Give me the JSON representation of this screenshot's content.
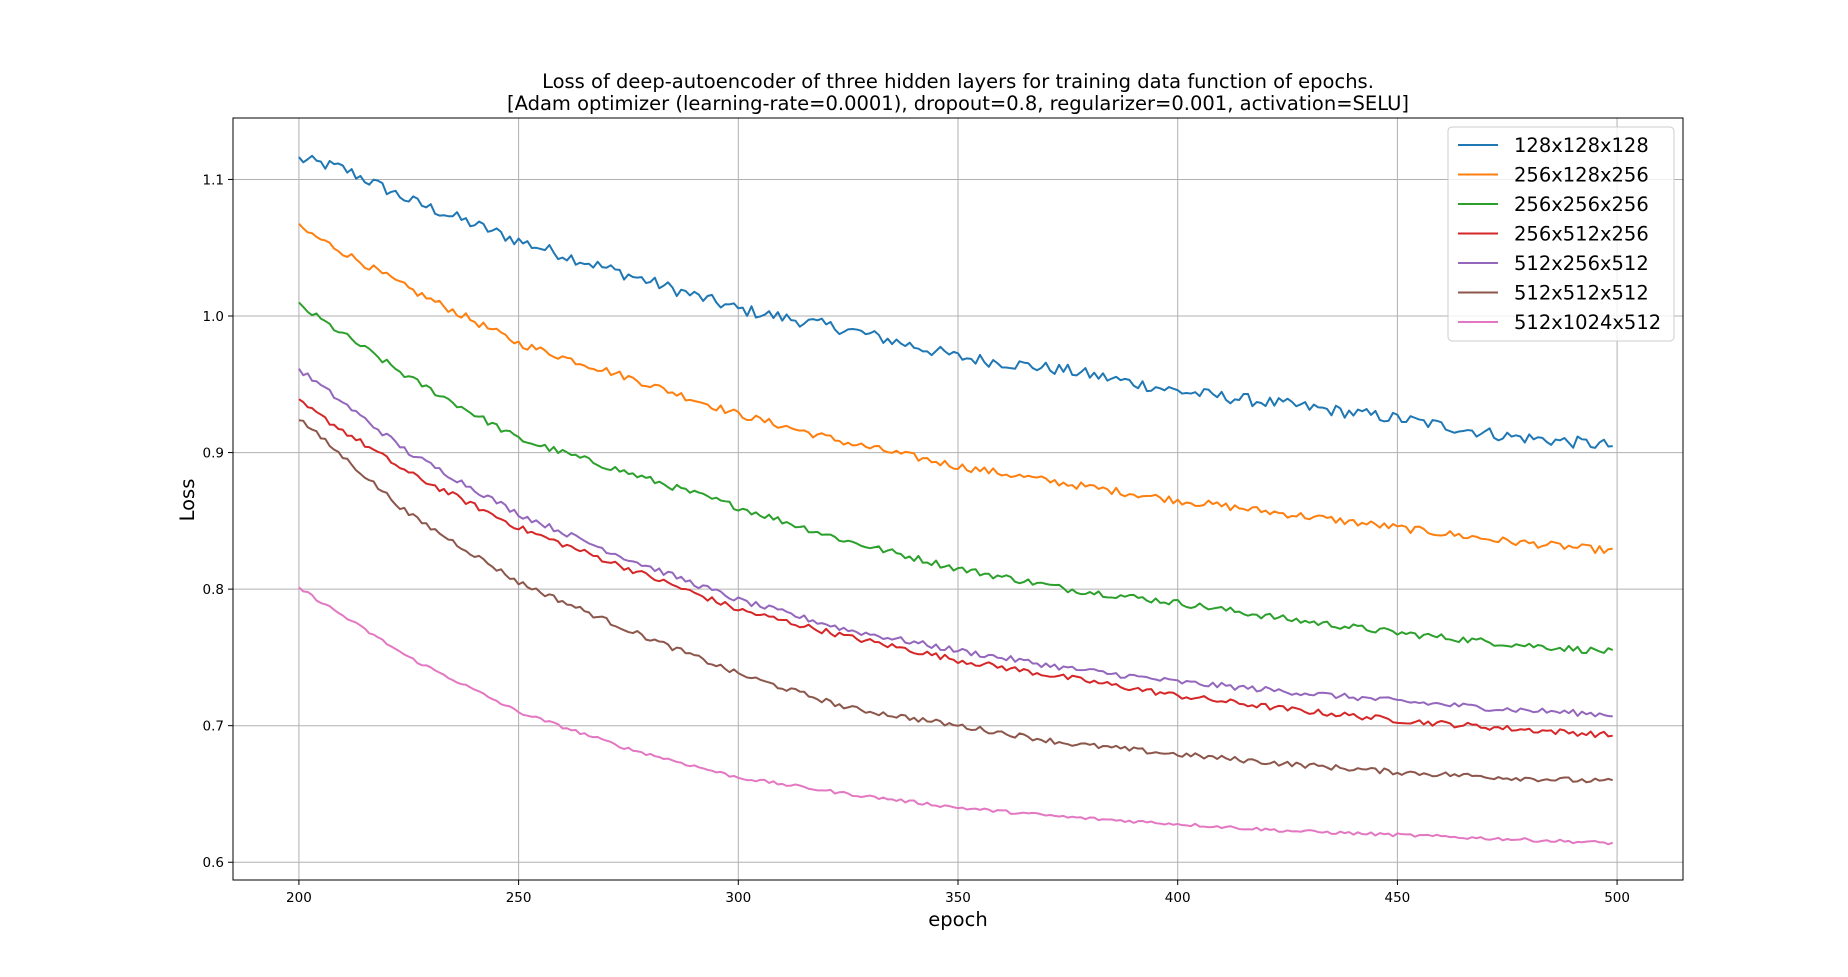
{
  "chart_data": {
    "type": "line",
    "title": "Loss of deep-autoencoder of three hidden layers for training data function of epochs.",
    "subtitle": "[Adam optimizer (learning-rate=0.0001), dropout=0.8, regularizer=0.001, activation=SELU]",
    "xlabel": "epoch",
    "ylabel": "Loss",
    "xlim": [
      185,
      515
    ],
    "ylim": [
      0.587,
      1.145
    ],
    "x_range": [
      200,
      499
    ],
    "xticks": [
      200,
      250,
      300,
      350,
      400,
      450,
      500
    ],
    "yticks": [
      0.6,
      0.7,
      0.8,
      0.9,
      1.0,
      1.1
    ],
    "ytick_labels": [
      "0.6",
      "0.7",
      "0.8",
      "0.9",
      "1.0",
      "1.1"
    ],
    "grid": true,
    "legend_position": "top-right",
    "series": [
      {
        "name": "128x128x128",
        "color": "#1f77b4",
        "noise": 0.0045,
        "points": [
          [
            200,
            1.115
          ],
          [
            210,
            1.108
          ],
          [
            225,
            1.085
          ],
          [
            250,
            1.055
          ],
          [
            275,
            1.03
          ],
          [
            300,
            1.005
          ],
          [
            325,
            0.99
          ],
          [
            350,
            0.97
          ],
          [
            375,
            0.96
          ],
          [
            400,
            0.945
          ],
          [
            425,
            0.935
          ],
          [
            450,
            0.925
          ],
          [
            475,
            0.912
          ],
          [
            499,
            0.905
          ]
        ]
      },
      {
        "name": "256x128x256",
        "color": "#ff7f0e",
        "noise": 0.0028,
        "points": [
          [
            200,
            1.065
          ],
          [
            225,
            1.02
          ],
          [
            250,
            0.98
          ],
          [
            275,
            0.955
          ],
          [
            300,
            0.928
          ],
          [
            325,
            0.907
          ],
          [
            350,
            0.89
          ],
          [
            375,
            0.877
          ],
          [
            400,
            0.865
          ],
          [
            425,
            0.855
          ],
          [
            450,
            0.845
          ],
          [
            475,
            0.835
          ],
          [
            499,
            0.828
          ]
        ]
      },
      {
        "name": "256x256x256",
        "color": "#2ca02c",
        "noise": 0.0025,
        "points": [
          [
            200,
            1.008
          ],
          [
            225,
            0.955
          ],
          [
            250,
            0.91
          ],
          [
            275,
            0.885
          ],
          [
            300,
            0.86
          ],
          [
            325,
            0.835
          ],
          [
            350,
            0.815
          ],
          [
            375,
            0.8
          ],
          [
            400,
            0.79
          ],
          [
            425,
            0.778
          ],
          [
            450,
            0.768
          ],
          [
            475,
            0.76
          ],
          [
            499,
            0.754
          ]
        ]
      },
      {
        "name": "256x512x256",
        "color": "#d62728",
        "noise": 0.0022,
        "points": [
          [
            200,
            0.937
          ],
          [
            225,
            0.885
          ],
          [
            250,
            0.845
          ],
          [
            275,
            0.815
          ],
          [
            300,
            0.785
          ],
          [
            325,
            0.765
          ],
          [
            350,
            0.748
          ],
          [
            375,
            0.735
          ],
          [
            400,
            0.722
          ],
          [
            425,
            0.712
          ],
          [
            450,
            0.704
          ],
          [
            475,
            0.698
          ],
          [
            499,
            0.693
          ]
        ]
      },
      {
        "name": "512x256x512",
        "color": "#9467bd",
        "noise": 0.0022,
        "points": [
          [
            200,
            0.961
          ],
          [
            225,
            0.9
          ],
          [
            250,
            0.855
          ],
          [
            275,
            0.822
          ],
          [
            300,
            0.792
          ],
          [
            325,
            0.77
          ],
          [
            350,
            0.755
          ],
          [
            375,
            0.742
          ],
          [
            400,
            0.732
          ],
          [
            425,
            0.725
          ],
          [
            450,
            0.718
          ],
          [
            475,
            0.712
          ],
          [
            499,
            0.708
          ]
        ]
      },
      {
        "name": "512x512x512",
        "color": "#8c564b",
        "noise": 0.002,
        "points": [
          [
            200,
            0.925
          ],
          [
            225,
            0.855
          ],
          [
            250,
            0.805
          ],
          [
            275,
            0.77
          ],
          [
            300,
            0.738
          ],
          [
            325,
            0.713
          ],
          [
            350,
            0.7
          ],
          [
            375,
            0.687
          ],
          [
            400,
            0.679
          ],
          [
            425,
            0.672
          ],
          [
            450,
            0.666
          ],
          [
            475,
            0.662
          ],
          [
            499,
            0.659
          ]
        ]
      },
      {
        "name": "512x1024x512",
        "color": "#e377c2",
        "noise": 0.0012,
        "points": [
          [
            200,
            0.801
          ],
          [
            225,
            0.75
          ],
          [
            250,
            0.71
          ],
          [
            275,
            0.683
          ],
          [
            300,
            0.662
          ],
          [
            325,
            0.65
          ],
          [
            350,
            0.64
          ],
          [
            375,
            0.633
          ],
          [
            400,
            0.628
          ],
          [
            425,
            0.623
          ],
          [
            450,
            0.62
          ],
          [
            475,
            0.617
          ],
          [
            499,
            0.614
          ]
        ]
      }
    ]
  }
}
